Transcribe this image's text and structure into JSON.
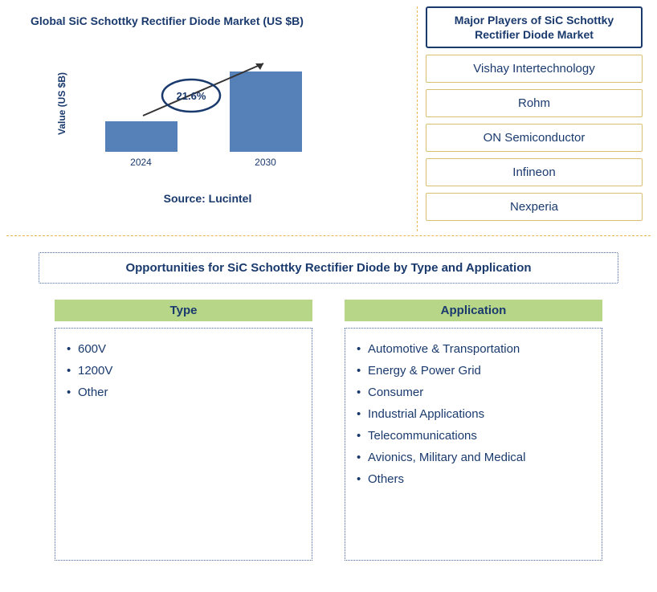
{
  "chart": {
    "title": "Global SiC Schottky Rectifier Diode Market (US $B)",
    "ylabel": "Value (US $B)",
    "type": "bar",
    "categories": [
      "2024",
      "2030"
    ],
    "values": [
      38,
      100
    ],
    "bar_color": "#5680b8",
    "growth_label": "21.6%",
    "ellipse_stroke": "#1a3a6e",
    "arrow_stroke": "#333333"
  },
  "source": "Source: Lucintel",
  "players": {
    "header": "Major Players of SiC Schottky Rectifier Diode Market",
    "list": [
      "Vishay Intertechnology",
      "Rohm",
      "ON Semiconductor",
      "Infineon",
      "Nexperia"
    ]
  },
  "opportunities": {
    "title": "Opportunities for SiC Schottky Rectifier Diode by Type and Application",
    "columns": [
      {
        "header": "Type",
        "items": [
          "600V",
          "1200V",
          "Other"
        ]
      },
      {
        "header": "Application",
        "items": [
          "Automotive & Transportation",
          "Energy & Power Grid",
          "Consumer",
          "Industrial Applications",
          "Telecommunications",
          "Avionics, Military and Medical",
          "Others"
        ]
      }
    ]
  },
  "colors": {
    "text_primary": "#1a3a6e",
    "accent_border": "#e8b750",
    "green_header": "#b8d688"
  }
}
